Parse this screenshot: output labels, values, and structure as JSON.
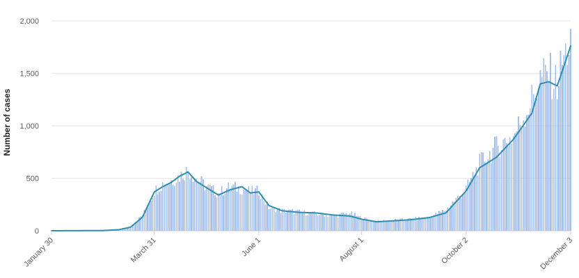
{
  "chart_data": {
    "type": "bar",
    "ylabel": "Number of cases",
    "xlabel": "",
    "ylim": [
      0,
      2000
    ],
    "y_ticks": [
      0,
      500,
      1000,
      1500,
      2000
    ],
    "y_tick_labels": [
      "0",
      "500",
      "1,000",
      "1,500",
      "2,000"
    ],
    "x_range": [
      "2020-01-30",
      "2020-12-03"
    ],
    "x_ticks": [
      "2020-01-30",
      "2020-03-31",
      "2020-06-01",
      "2020-08-01",
      "2020-10-02",
      "2020-12-03"
    ],
    "x_tick_labels": [
      "January 30",
      "March 31",
      "June 1",
      "August 1",
      "October 2",
      "December 3"
    ],
    "grid": true,
    "legend": "none",
    "colors": {
      "bars": "#a4bfe9",
      "line": "#2e8db0",
      "grid": "#e6e6e6"
    },
    "series": [
      {
        "type": "bar",
        "keypoints_x": [
          "2020-01-30",
          "2020-03-01",
          "2020-03-10",
          "2020-03-17",
          "2020-03-24",
          "2020-03-31",
          "2020-04-05",
          "2020-04-10",
          "2020-04-15",
          "2020-04-20",
          "2020-04-25",
          "2020-05-01",
          "2020-05-08",
          "2020-05-15",
          "2020-05-22",
          "2020-05-27",
          "2020-06-01",
          "2020-06-07",
          "2020-06-15",
          "2020-06-25",
          "2020-07-05",
          "2020-07-15",
          "2020-07-25",
          "2020-08-01",
          "2020-08-10",
          "2020-08-20",
          "2020-08-30",
          "2020-09-10",
          "2020-09-20",
          "2020-10-02",
          "2020-10-10",
          "2020-10-20",
          "2020-10-30",
          "2020-11-10",
          "2020-11-15",
          "2020-11-20",
          "2020-11-25",
          "2020-11-28",
          "2020-12-03"
        ],
        "keypoints_y": [
          0,
          0,
          10,
          40,
          150,
          380,
          450,
          480,
          520,
          580,
          500,
          420,
          360,
          420,
          400,
          370,
          380,
          220,
          190,
          180,
          160,
          140,
          170,
          120,
          90,
          100,
          110,
          130,
          200,
          400,
          640,
          800,
          900,
          1250,
          1450,
          1500,
          1400,
          1600,
          1800
        ]
      },
      {
        "type": "line",
        "keypoints_x": [
          "2020-01-30",
          "2020-03-01",
          "2020-03-10",
          "2020-03-17",
          "2020-03-24",
          "2020-03-31",
          "2020-04-05",
          "2020-04-10",
          "2020-04-15",
          "2020-04-20",
          "2020-04-25",
          "2020-05-01",
          "2020-05-08",
          "2020-05-15",
          "2020-05-22",
          "2020-05-27",
          "2020-06-01",
          "2020-06-07",
          "2020-06-15",
          "2020-06-25",
          "2020-07-05",
          "2020-07-15",
          "2020-07-25",
          "2020-08-01",
          "2020-08-10",
          "2020-08-20",
          "2020-08-30",
          "2020-09-10",
          "2020-09-20",
          "2020-10-02",
          "2020-10-10",
          "2020-10-20",
          "2020-10-30",
          "2020-11-10",
          "2020-11-15",
          "2020-11-20",
          "2020-11-25",
          "2020-11-28",
          "2020-12-03"
        ],
        "keypoints_y": [
          0,
          2,
          10,
          35,
          130,
          370,
          420,
          460,
          520,
          560,
          470,
          410,
          340,
          390,
          420,
          360,
          370,
          240,
          190,
          175,
          170,
          150,
          140,
          110,
          85,
          95,
          105,
          125,
          170,
          380,
          600,
          700,
          870,
          1120,
          1400,
          1420,
          1380,
          1520,
          1760
        ]
      }
    ]
  }
}
